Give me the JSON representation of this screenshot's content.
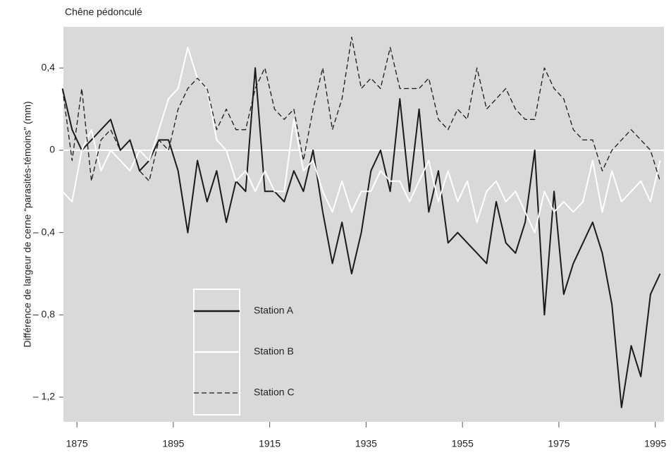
{
  "chart_data": {
    "type": "line",
    "title": "Chêne pédonculé",
    "y_label": "Différence de largeur de cerne “parasités-témoins” (mm)",
    "x": [
      1872,
      1874,
      1876,
      1878,
      1880,
      1882,
      1884,
      1886,
      1888,
      1890,
      1892,
      1894,
      1896,
      1898,
      1900,
      1902,
      1904,
      1906,
      1908,
      1910,
      1912,
      1914,
      1916,
      1918,
      1920,
      1922,
      1924,
      1926,
      1928,
      1930,
      1932,
      1934,
      1936,
      1938,
      1940,
      1942,
      1944,
      1946,
      1948,
      1950,
      1952,
      1954,
      1956,
      1958,
      1960,
      1962,
      1964,
      1966,
      1968,
      1970,
      1972,
      1974,
      1976,
      1978,
      1980,
      1982,
      1984,
      1986,
      1988,
      1990,
      1992,
      1994,
      1996
    ],
    "series": [
      {
        "name": "Station A",
        "color": "#1a1a1a",
        "style": "solid",
        "values": [
          0.3,
          0.1,
          0.0,
          0.05,
          0.1,
          0.15,
          0.0,
          0.05,
          -0.1,
          -0.05,
          0.05,
          0.05,
          -0.1,
          -0.4,
          -0.05,
          -0.25,
          -0.1,
          -0.35,
          -0.15,
          -0.2,
          0.4,
          -0.2,
          -0.2,
          -0.25,
          -0.1,
          -0.2,
          0.0,
          -0.3,
          -0.55,
          -0.35,
          -0.6,
          -0.4,
          -0.1,
          0.0,
          -0.2,
          0.25,
          -0.2,
          0.2,
          -0.3,
          -0.1,
          -0.45,
          -0.4,
          -0.45,
          -0.5,
          -0.55,
          -0.25,
          -0.45,
          -0.5,
          -0.35,
          0.0,
          -0.8,
          -0.2,
          -0.7,
          -0.55,
          -0.45,
          -0.35,
          -0.5,
          -0.75,
          -1.25,
          -0.95,
          -1.1,
          -0.7,
          -0.6
        ]
      },
      {
        "name": "Station B",
        "color": "#ffffff",
        "style": "solid",
        "values": [
          -0.2,
          -0.25,
          0.0,
          0.1,
          -0.1,
          0.0,
          -0.05,
          -0.1,
          0.0,
          -0.05,
          0.1,
          0.25,
          0.3,
          0.5,
          0.35,
          0.3,
          0.05,
          0.0,
          -0.15,
          -0.1,
          -0.2,
          -0.1,
          -0.2,
          -0.2,
          0.15,
          -0.1,
          -0.05,
          -0.2,
          -0.3,
          -0.15,
          -0.3,
          -0.2,
          -0.2,
          -0.1,
          -0.15,
          -0.15,
          -0.25,
          -0.15,
          -0.05,
          -0.25,
          -0.1,
          -0.25,
          -0.15,
          -0.35,
          -0.2,
          -0.15,
          -0.25,
          -0.2,
          -0.3,
          -0.4,
          -0.2,
          -0.3,
          -0.25,
          -0.3,
          -0.25,
          -0.05,
          -0.3,
          -0.1,
          -0.25,
          -0.2,
          -0.15,
          -0.25,
          -0.05
        ]
      },
      {
        "name": "Station C",
        "color": "#1a1a1a",
        "style": "dashed",
        "values": [
          0.3,
          -0.05,
          0.3,
          -0.15,
          0.05,
          0.1,
          0.0,
          0.05,
          -0.1,
          -0.15,
          0.05,
          0.0,
          0.2,
          0.3,
          0.35,
          0.3,
          0.1,
          0.2,
          0.1,
          0.1,
          0.3,
          0.4,
          0.2,
          0.15,
          0.2,
          -0.05,
          0.2,
          0.4,
          0.1,
          0.25,
          0.55,
          0.3,
          0.35,
          0.3,
          0.5,
          0.3,
          0.3,
          0.3,
          0.35,
          0.15,
          0.1,
          0.2,
          0.15,
          0.4,
          0.2,
          0.25,
          0.3,
          0.2,
          0.15,
          0.15,
          0.4,
          0.3,
          0.25,
          0.1,
          0.05,
          0.05,
          -0.1,
          0.0,
          0.05,
          0.1,
          0.05,
          0.0,
          -0.15
        ]
      }
    ],
    "xlim": [
      1872.2,
      1996.8
    ],
    "ylim": [
      -1.32,
      0.6
    ],
    "xticks": [
      1875,
      1895,
      1915,
      1935,
      1955,
      1975,
      1995
    ],
    "yticks": [
      {
        "value": 0.4,
        "label": "0,4"
      },
      0,
      {
        "value": -0.4,
        "label": "– 0,4"
      },
      {
        "value": -0.8,
        "label": "– 0,8"
      },
      {
        "value": -1.2,
        "label": "– 1,2"
      }
    ],
    "zero_line": true,
    "legend": "lower left"
  }
}
